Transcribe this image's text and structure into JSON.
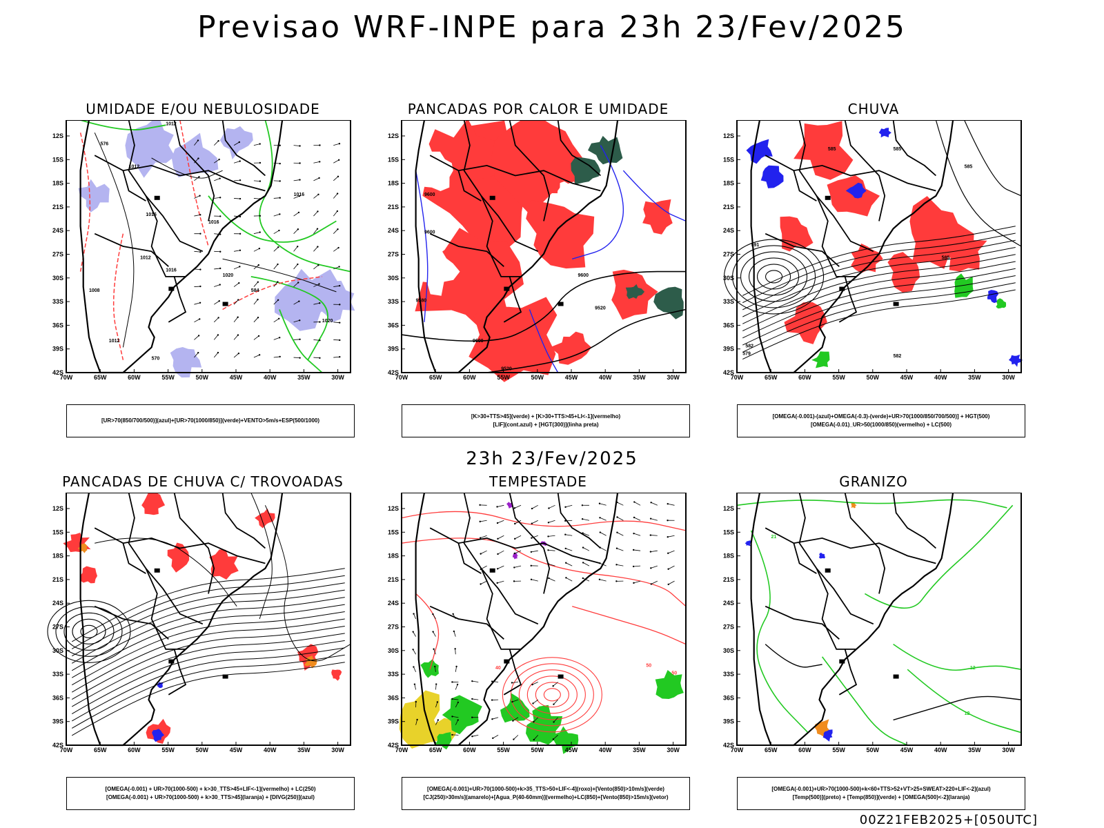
{
  "header": {
    "title": "Previsao WRF-INPE  para 23h 23/Fev/2025"
  },
  "mid_time": "23h 23/Fev/2025",
  "footer": "00Z21FEB2025+[050UTC]",
  "axes": {
    "lat_labels": [
      "12S",
      "15S",
      "18S",
      "21S",
      "24S",
      "27S",
      "30S",
      "33S",
      "36S",
      "39S",
      "42S"
    ],
    "lon_labels": [
      "70W",
      "65W",
      "60W",
      "55W",
      "50W",
      "45W",
      "40W",
      "35W",
      "30W"
    ]
  },
  "colors": {
    "red": "#ff3b3b",
    "green": "#22c922",
    "blue": "#2222ee",
    "lavender": "#b4b4f0",
    "darkgreen": "#2d5c4a",
    "yellow": "#e8d22a",
    "orange": "#f08c1e",
    "purple": "#9a20c8",
    "black": "#000000"
  },
  "panels": [
    {
      "title": "UMIDADE E/OU NEBULOSIDADE",
      "legend": [
        "[UR>70(850/700/500)](azul)+[UR>70(1000/850)](verde)+VENTO>5m/s+ESP(500/1000)"
      ],
      "labels": [
        "1012",
        "1012",
        "1016",
        "1016",
        "1020",
        "1012",
        "1008",
        "1016",
        "1012",
        "1020",
        "584",
        "576",
        "570",
        "1016"
      ]
    },
    {
      "title": "PANCADAS POR CALOR E UMIDADE",
      "legend": [
        "[K>30+TTS>45](verde) + [K>30+TTS>45+LI<-1](vermelho)",
        "[LIF](cont.azul) + [HGT(300)](linha preta)"
      ],
      "labels": [
        "9600",
        "9600",
        "9580",
        "9520",
        "9600",
        "9520",
        "9600"
      ]
    },
    {
      "title": "CHUVA",
      "legend": [
        "[OMEGA(-0.001)-(azul)+OMEGA(-0.3)-(verde)+UR>70(1000/850/700/500)] + HGT(500)",
        "[OMEGA(-0.01)_UR>50(1000/850)(vermelho) + LC(500)"
      ],
      "labels": [
        "585",
        "585",
        "585",
        "591",
        "579",
        "582",
        "585",
        "582"
      ]
    },
    {
      "title": "PANCADAS DE CHUVA C/ TROVOADAS",
      "legend": [
        "[OMEGA(-0.001) + UR>70(1000-500) + k>30_TTS>45+LIF<-1](vermelho) + LC(250)",
        "[OMEGA(-0.001) + UR>70(1000-500) + k>30_TTS>45](laranja) + [DIVG(250)](azul)"
      ],
      "labels": []
    },
    {
      "title": "TEMPESTADE",
      "legend": [
        "[OMEGA(-0.001)+UR>70(1000-500)+k>35_TTS>50+LIF<-4](roxo)+[Vento(850)>10m/s](verde)",
        "[CJ(250)>30m/s](amarelo)+[Agua_P(40-60mm)](vermelho)+LC(850)+[Vento(850)>15m/s](vetor)"
      ],
      "labels": [
        "50",
        "40",
        "50"
      ]
    },
    {
      "title": "GRANIZO",
      "legend": [
        "[OMEGA(-0.001)+UR>70(1000-500)+k<60+TTS>52+VT>25+SWEAT>220+LIF<-2](azul)",
        "[Temp(500)](preto) + [Temp(850)](verde) + [OMEGA(500)<-2](laranja)"
      ],
      "labels": [
        "12",
        "21",
        "12"
      ]
    }
  ]
}
